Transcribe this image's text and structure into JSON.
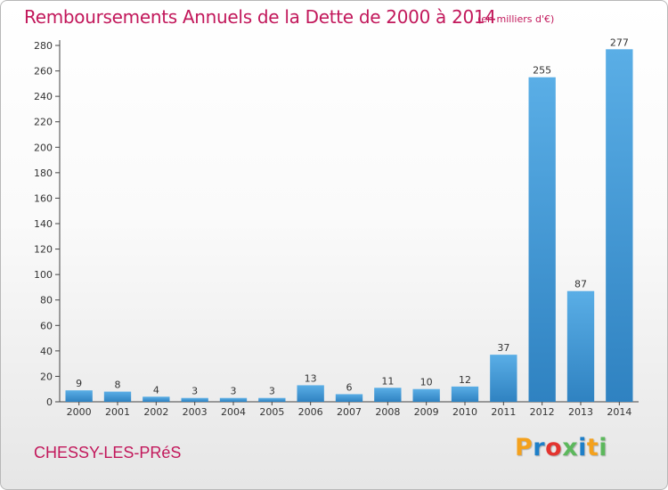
{
  "header": {
    "title": "Remboursements Annuels de la Dette de 2000 à 2014",
    "unit": "(en milliers d'€)"
  },
  "footer": {
    "commune": "CHESSY-LES-PRéS",
    "logo_letters": [
      "P",
      "r",
      "o",
      "x",
      "i",
      "t",
      "i"
    ],
    "logo_colors": [
      "#f4a11d",
      "#1e7fc8",
      "#e3342f",
      "#5cb85c",
      "#1e7fc8",
      "#f4a11d",
      "#5cb85c"
    ]
  },
  "chart_data": {
    "type": "bar",
    "title": "Remboursements Annuels de la Dette de 2000 à 2014",
    "xlabel": "",
    "ylabel": "",
    "categories": [
      "2000",
      "2001",
      "2002",
      "2003",
      "2004",
      "2005",
      "2006",
      "2007",
      "2008",
      "2009",
      "2010",
      "2011",
      "2012",
      "2013",
      "2014"
    ],
    "values": [
      9,
      8,
      4,
      3,
      3,
      3,
      13,
      6,
      11,
      10,
      12,
      37,
      255,
      87,
      277
    ],
    "ylim": [
      0,
      280
    ],
    "yticks": [
      0,
      20,
      40,
      60,
      80,
      100,
      120,
      140,
      160,
      180,
      200,
      220,
      240,
      260,
      280
    ],
    "grid": false,
    "legend": "none",
    "colors": {
      "bar_top": "#5aaee6",
      "bar_bottom": "#2f82c1",
      "axis": "#444444"
    }
  }
}
